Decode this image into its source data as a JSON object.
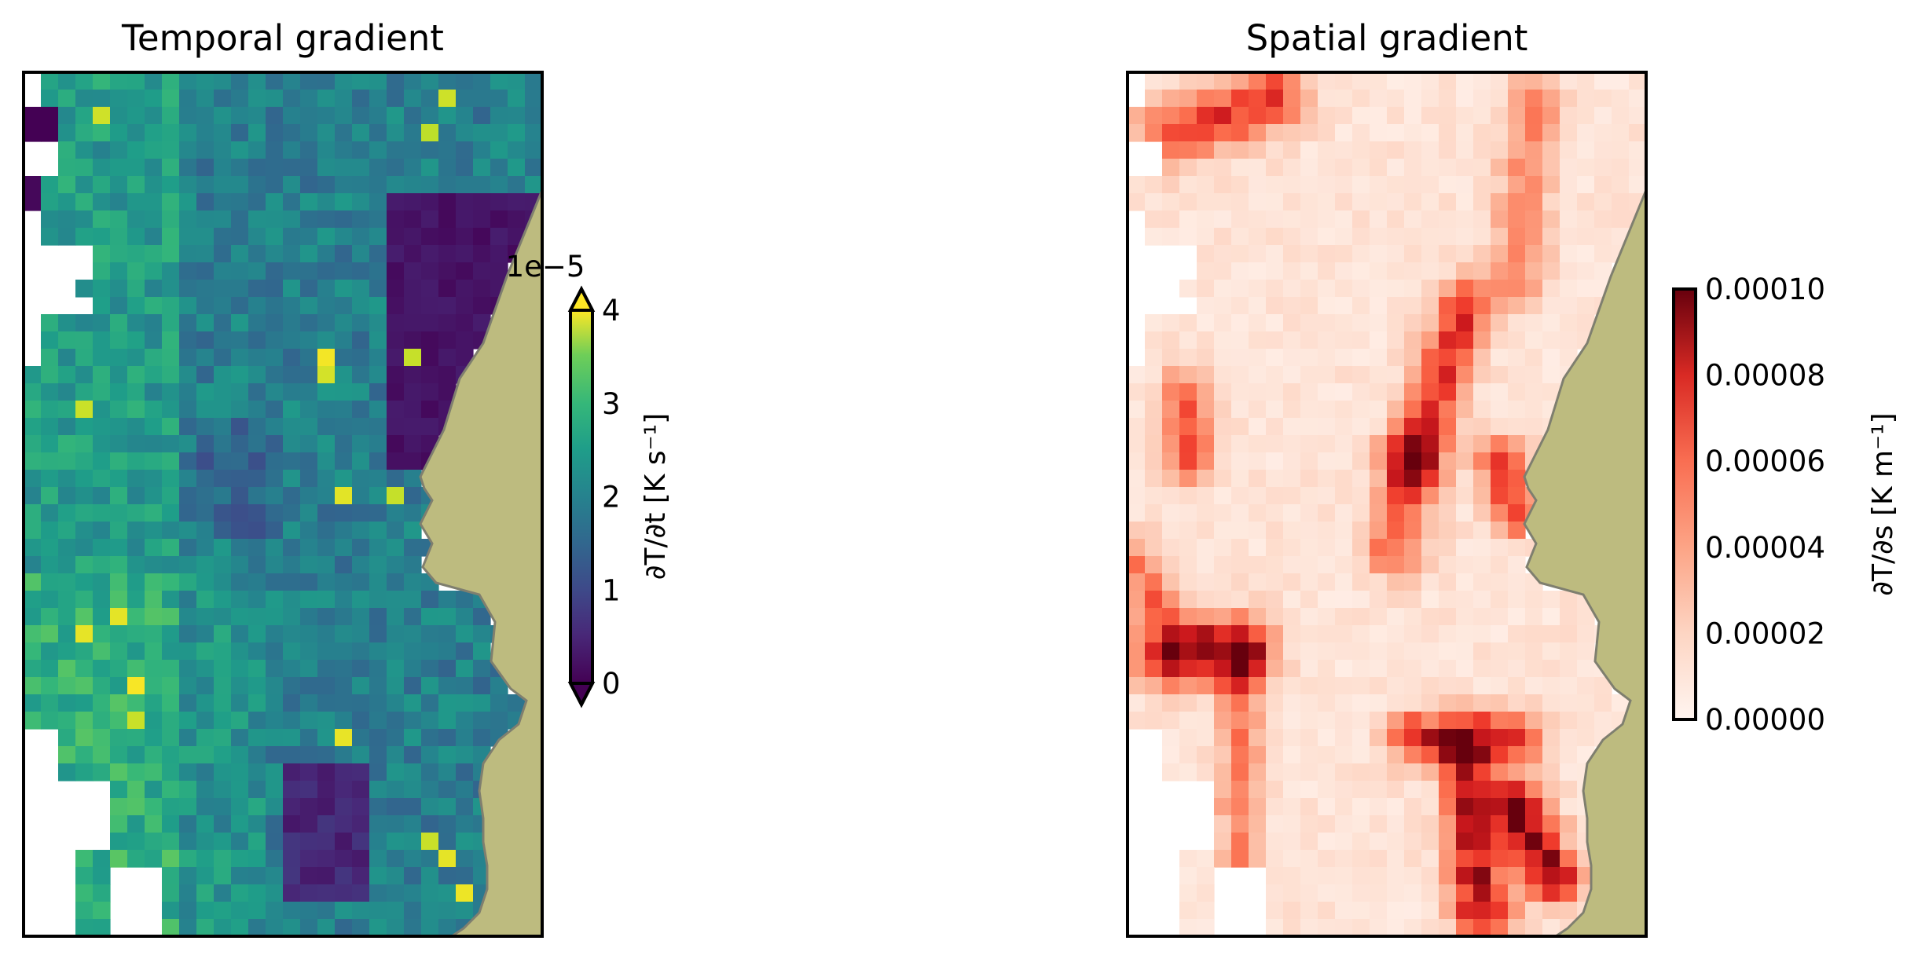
{
  "chart_data": [
    {
      "type": "heatmap",
      "title": "Temporal gradient",
      "colormap": "viridis",
      "colorbar": {
        "label": "∂T/∂t [K s⁻¹]",
        "offset_text": "1e−5",
        "ticks": [
          "0",
          "1",
          "2",
          "3",
          "4"
        ],
        "range": [
          0,
          4
        ],
        "extend": "both"
      },
      "grid": {
        "cols": 30,
        "rows": 50
      },
      "land_color": "#bdbb7f",
      "coast_color": "#7f7f6f"
    },
    {
      "type": "heatmap",
      "title": "Spatial gradient",
      "colormap": "Reds",
      "colorbar": {
        "label": "∂T/∂s [K m⁻¹]",
        "ticks": [
          "0.00000",
          "0.00002",
          "0.00004",
          "0.00006",
          "0.00008",
          "0.00010"
        ],
        "range": [
          0,
          0.0001
        ],
        "extend": "neither"
      },
      "grid": {
        "cols": 30,
        "rows": 50
      },
      "land_color": "#bdbb7f",
      "coast_color": "#7f7f6f"
    }
  ]
}
